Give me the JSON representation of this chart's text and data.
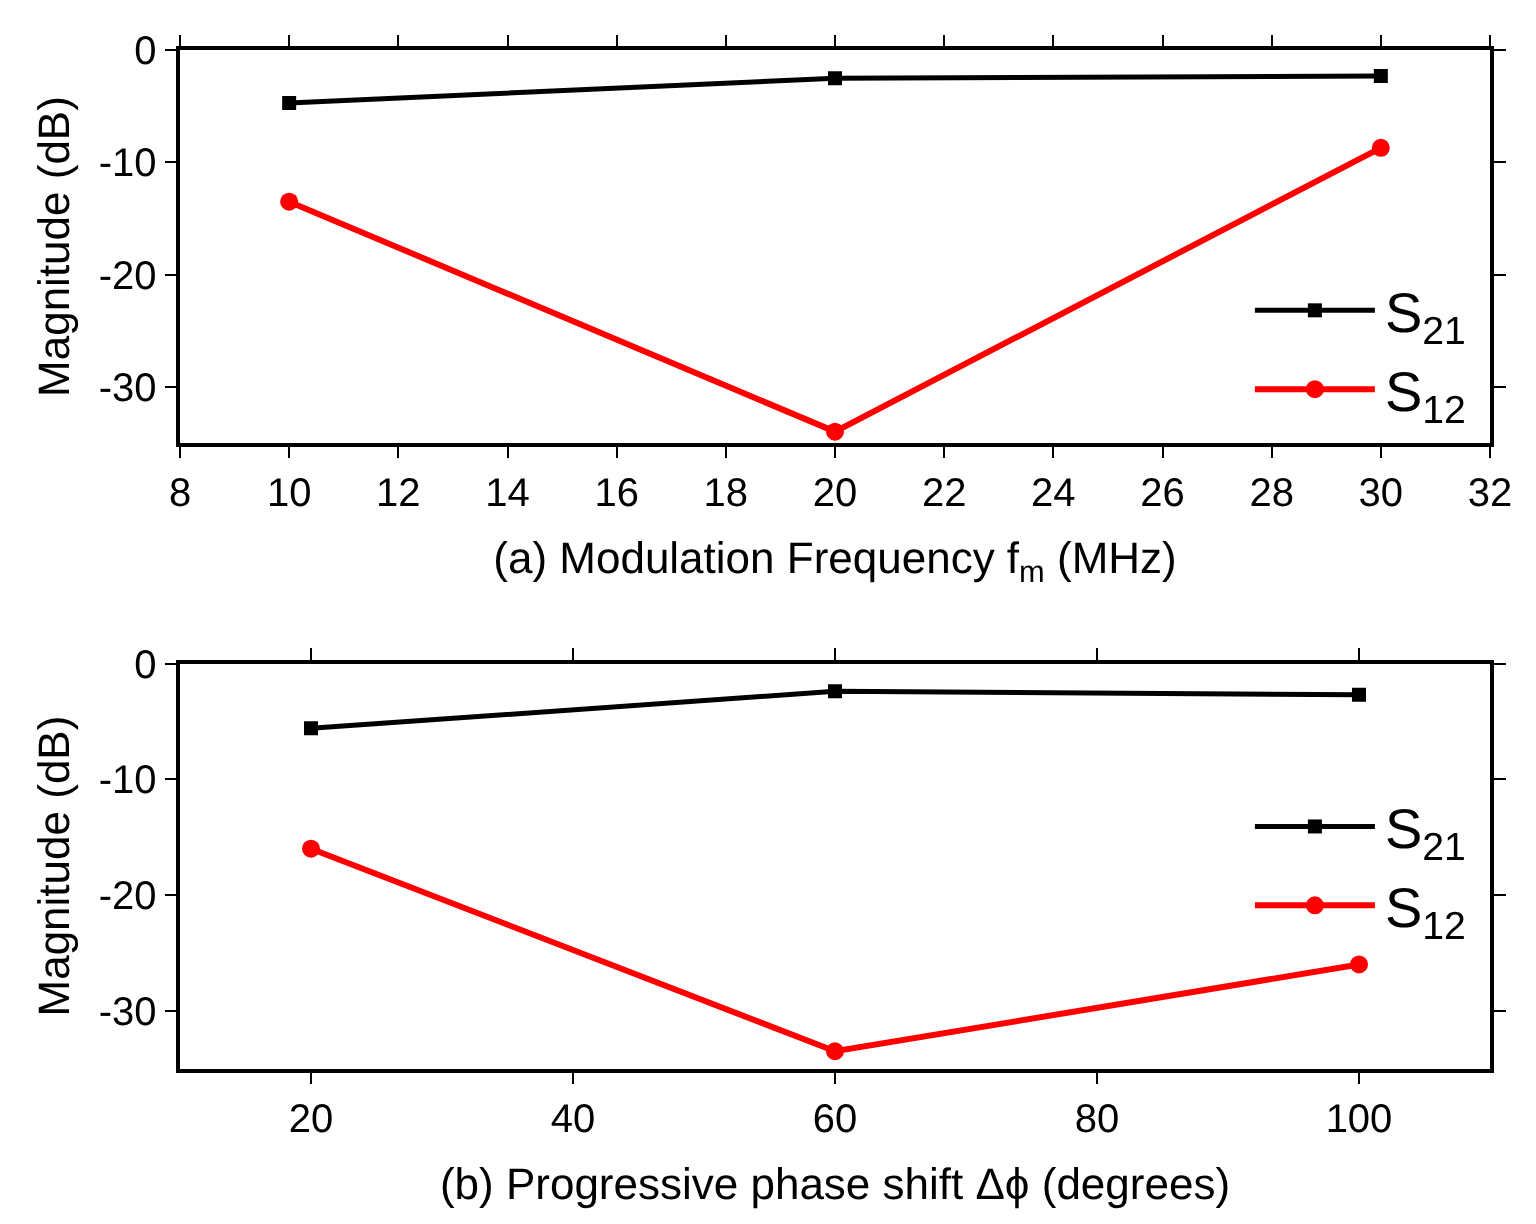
{
  "chart_data": [
    {
      "type": "line",
      "xlabel": "(a) Modulation Frequency f$_{m}$ (MHz)",
      "ylabel": "Magnitude (dB)",
      "x": [
        10,
        20,
        30
      ],
      "xlim": [
        8,
        32
      ],
      "xticks": [
        8,
        10,
        12,
        14,
        16,
        18,
        20,
        22,
        24,
        26,
        28,
        30,
        32
      ],
      "ylim": [
        -35,
        0
      ],
      "yticks": [
        -30,
        -20,
        -10,
        0
      ],
      "legend": "bottom right",
      "series": [
        {
          "name": "S$_{21}$",
          "color": "#000000",
          "marker": "square",
          "values": [
            -4.7,
            -2.5,
            -2.3
          ]
        },
        {
          "name": "S$_{12}$",
          "color": "#ff0000",
          "marker": "circle",
          "values": [
            -13.5,
            -34,
            -8.7
          ]
        }
      ]
    },
    {
      "type": "line",
      "xlabel": "(b) Progressive phase shift Δϕ (degrees)",
      "ylabel": "Magnitude (dB)",
      "x": [
        20,
        60,
        100
      ],
      "xlim": [
        10,
        110
      ],
      "xticks": [
        20,
        40,
        60,
        80,
        100
      ],
      "ylim": [
        -35,
        0
      ],
      "yticks": [
        -30,
        -20,
        -10,
        0
      ],
      "legend": "right",
      "series": [
        {
          "name": "S$_{21}$",
          "color": "#000000",
          "marker": "square",
          "values": [
            -5.6,
            -2.4,
            -2.7
          ]
        },
        {
          "name": "S$_{12}$",
          "color": "#ff0000",
          "marker": "circle",
          "values": [
            -16,
            -33.5,
            -26
          ]
        }
      ]
    }
  ]
}
